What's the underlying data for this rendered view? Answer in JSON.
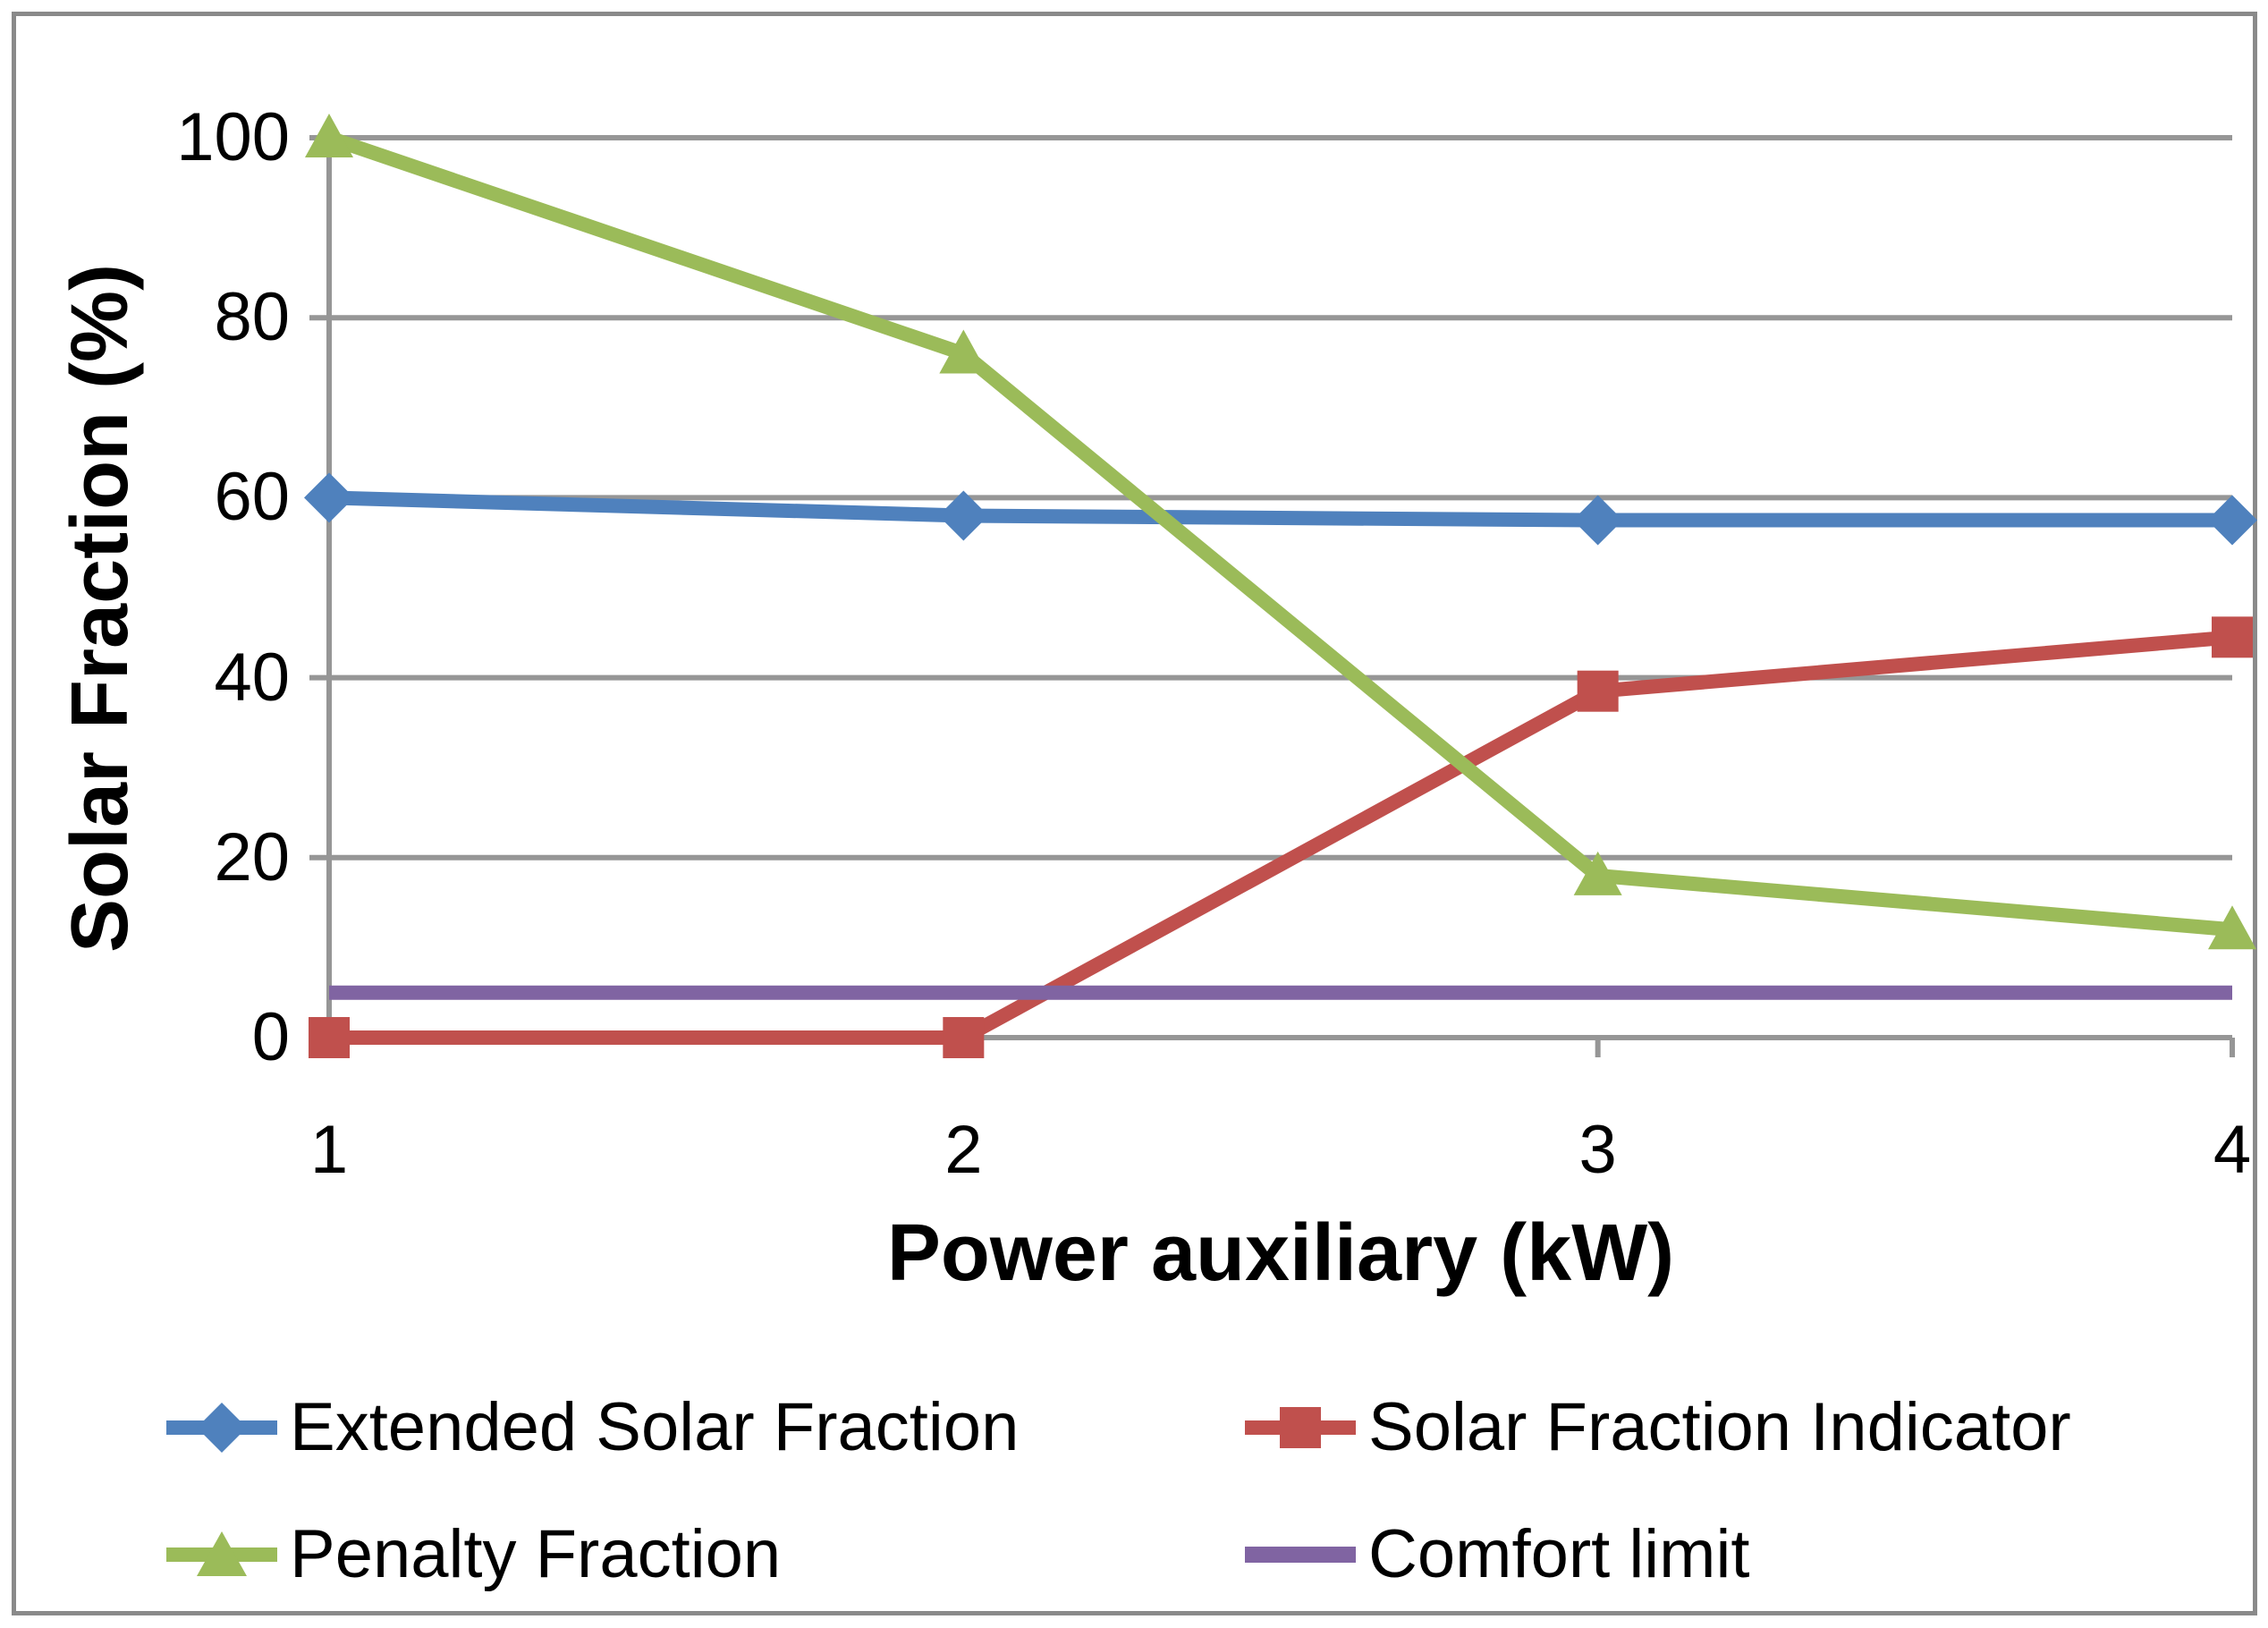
{
  "figure": {
    "background": "#FFFFFF",
    "border_color": "#8A8A8A"
  },
  "chart_data": {
    "type": "line",
    "title": "",
    "xlabel": "Power auxiliary (kW)",
    "ylabel": "Solar Fraction (%)",
    "x": [
      1,
      2,
      3,
      4
    ],
    "x_tick_labels": [
      "1",
      "2",
      "3",
      "4"
    ],
    "y_tick_values": [
      0,
      20,
      40,
      60,
      80,
      100
    ],
    "y_tick_labels": [
      "0",
      "20",
      "40",
      "60",
      "80",
      "100"
    ],
    "xlim": [
      1,
      4
    ],
    "ylim": [
      0,
      100
    ],
    "grid": "horizontal",
    "gridline_color": "#969696",
    "axis_color": "#969696",
    "series": [
      {
        "name": "Extended Solar Fraction",
        "color": "#4F81BD",
        "marker": "diamond",
        "values": [
          60,
          58,
          57.5,
          57.5
        ]
      },
      {
        "name": "Solar Fraction Indicator",
        "color": "#C0504D",
        "marker": "square",
        "values": [
          0,
          0,
          38.5,
          44.5
        ]
      },
      {
        "name": "Penalty Fraction",
        "color": "#9BBB59",
        "marker": "triangle",
        "values": [
          100,
          76,
          18,
          12
        ]
      },
      {
        "name": "Comfort limit",
        "color": "#8064A2",
        "marker": "none",
        "values": [
          5,
          5,
          5,
          5
        ]
      }
    ],
    "legend_position": "bottom"
  }
}
